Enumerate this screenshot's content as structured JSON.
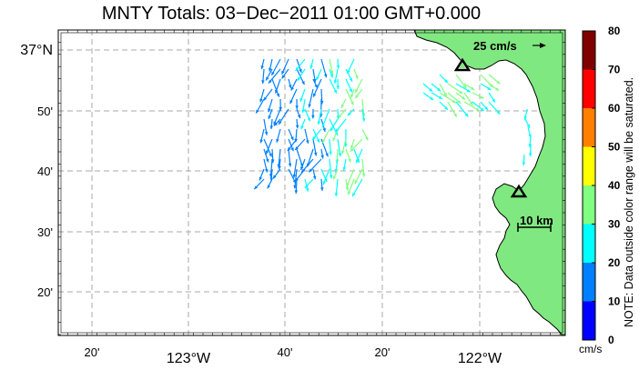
{
  "title": "MNTY Totals: 03−Dec−2011 01:00 GMT+0.000",
  "lat_labels": [
    {
      "text": "37°N",
      "deg": 37,
      "min": 0
    },
    {
      "text": "50'",
      "deg": 36,
      "min": 50
    },
    {
      "text": "40'",
      "deg": 36,
      "min": 40
    },
    {
      "text": "30'",
      "deg": 36,
      "min": 30
    },
    {
      "text": "20'",
      "deg": 36,
      "min": 20
    }
  ],
  "lon_labels": [
    {
      "text": "20'",
      "deg": -123,
      "min": 20
    },
    {
      "text": "123°W",
      "deg": -123,
      "min": 0
    },
    {
      "text": "40'",
      "deg": -122,
      "min": 40
    },
    {
      "text": "20'",
      "deg": -122,
      "min": 20
    },
    {
      "text": "122°W",
      "deg": -122,
      "min": 0
    }
  ],
  "scale_arrow_label": "25 cm/s",
  "scale_bar_label": "10 km",
  "colorbar": {
    "ticks": [
      "80",
      "70",
      "60",
      "50",
      "40",
      "30",
      "20",
      "10",
      "0"
    ],
    "unit": "cm/s",
    "colors": [
      "#0000ff",
      "#0080ff",
      "#00ffff",
      "#80ff80",
      "#ffff00",
      "#ff8000",
      "#ff0000",
      "#800000"
    ]
  },
  "note": "NOTE: Data outside color range will be saturated.",
  "colors": {
    "land": "#80e880",
    "grid": "#aaaaaa"
  }
}
